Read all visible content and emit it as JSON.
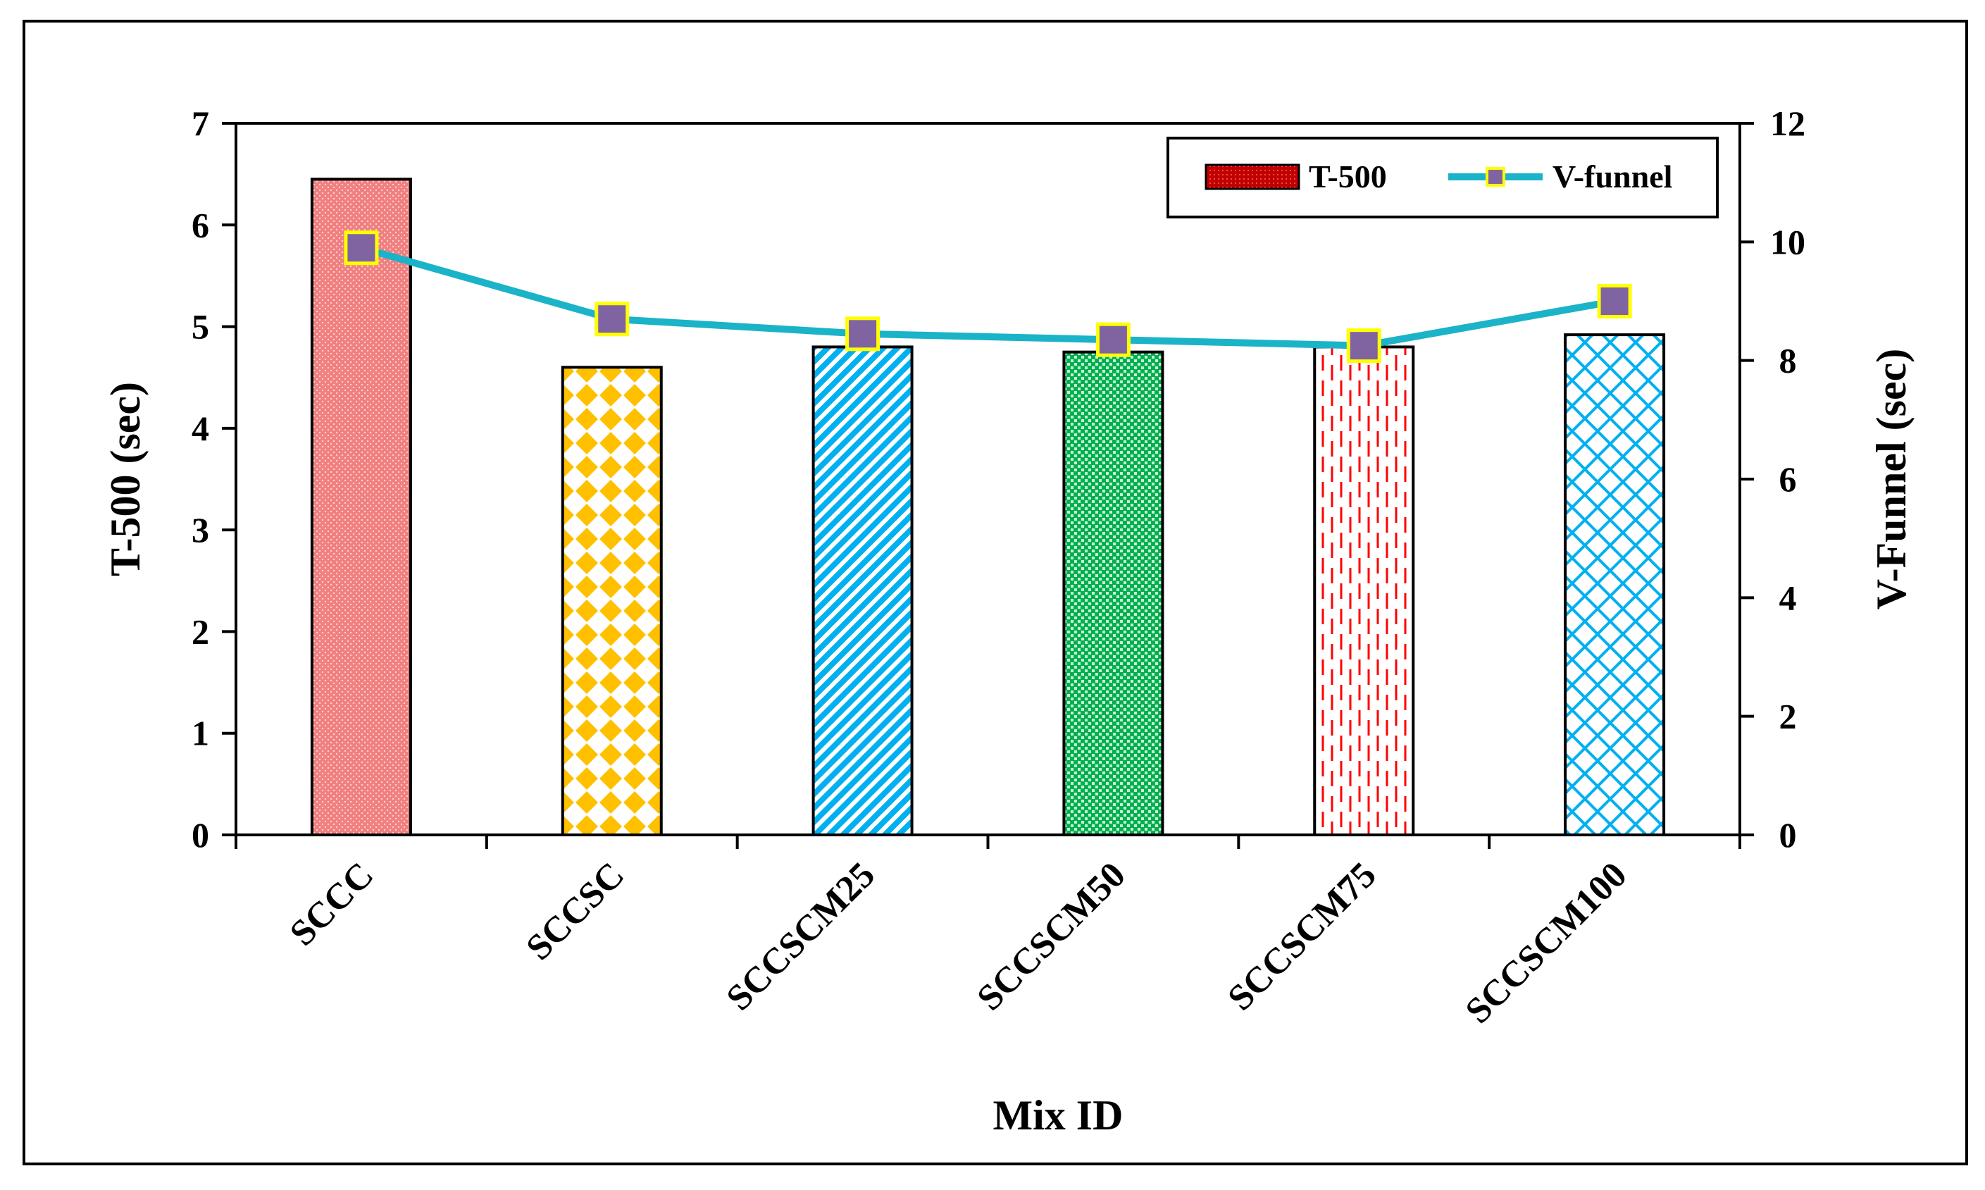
{
  "chart_data": {
    "type": "bar+line",
    "categories": [
      "SCCC",
      "SCCSC",
      "SCCSCM25",
      "SCCSCM50",
      "SCCSCM75",
      "SCCSCM100"
    ],
    "series": [
      {
        "name": "T-500",
        "type": "bar",
        "axis": "left",
        "values": [
          6.45,
          4.6,
          4.8,
          4.75,
          4.8,
          4.92
        ],
        "colors": [
          "#f08080",
          "#ffc000",
          "#00b0f0",
          "#00b050",
          "#ff0000",
          "#00b0f0"
        ]
      },
      {
        "name": "V-funnel",
        "type": "line",
        "axis": "right",
        "values": [
          9.9,
          8.7,
          8.45,
          8.35,
          8.25,
          9.0
        ],
        "line_color": "#1ab3c8",
        "marker_color": "#8064a2",
        "marker_edge": "#ffff00"
      }
    ],
    "title": "",
    "xlabel": "Mix ID",
    "ylabel": "T-500 (sec)",
    "ylabel_right": "V-Funnel (sec)",
    "ylim": [
      0,
      7
    ],
    "yticks": [
      "0",
      "1",
      "2",
      "3",
      "4",
      "5",
      "6",
      "7"
    ],
    "ylim_right": [
      0,
      12
    ],
    "yticks_right": [
      "0",
      "2",
      "4",
      "6",
      "8",
      "10",
      "12"
    ],
    "legend": [
      "T-500",
      "V-funnel"
    ],
    "legend_position": "top-right",
    "grid": false
  }
}
